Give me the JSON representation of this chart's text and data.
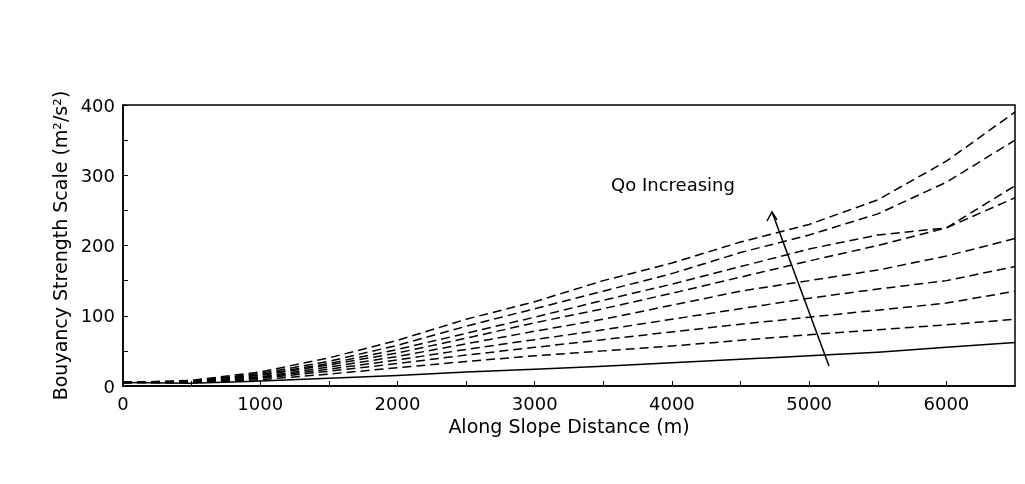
{
  "chart_data": {
    "type": "line",
    "xlabel": "Along Slope Distance (m)",
    "ylabel": "Bouyancy Strength Scale (m²/s²)",
    "x": [
      0,
      500,
      1000,
      1500,
      2000,
      2500,
      3000,
      3500,
      4000,
      4500,
      5000,
      5500,
      6000,
      6500
    ],
    "series": [
      {
        "color": "#000000",
        "line_style": "solid",
        "values": [
          5,
          4,
          7,
          11,
          15,
          20,
          24,
          28,
          33,
          38,
          43,
          48,
          55,
          62
        ]
      },
      {
        "color": "#000000",
        "line_style": "dashed",
        "values": [
          5,
          5,
          9,
          17,
          26,
          35,
          43,
          50,
          57,
          65,
          73,
          80,
          87,
          95
        ]
      },
      {
        "color": "#000000",
        "line_style": "dashed",
        "values": [
          5,
          5,
          11,
          21,
          32,
          44,
          55,
          66,
          77,
          88,
          98,
          108,
          118,
          135
        ]
      },
      {
        "color": "#000000",
        "line_style": "dashed",
        "values": [
          5,
          5,
          12,
          24,
          37,
          52,
          66,
          80,
          95,
          110,
          125,
          138,
          150,
          170
        ]
      },
      {
        "color": "#000000",
        "line_style": "dashed",
        "values": [
          5,
          6,
          13,
          27,
          42,
          60,
          78,
          95,
          115,
          135,
          150,
          165,
          185,
          210
        ]
      },
      {
        "color": "#000000",
        "line_style": "dashed",
        "values": [
          5,
          6,
          15,
          30,
          47,
          68,
          90,
          110,
          132,
          155,
          178,
          200,
          225,
          268
        ]
      },
      {
        "color": "#000000",
        "line_style": "dashed",
        "values": [
          5,
          7,
          16,
          32,
          52,
          75,
          98,
          122,
          145,
          170,
          195,
          215,
          225,
          285
        ]
      },
      {
        "color": "#000000",
        "line_style": "dashed",
        "values": [
          5,
          7,
          18,
          35,
          58,
          85,
          110,
          135,
          160,
          190,
          215,
          245,
          290,
          350
        ]
      },
      {
        "color": "#000000",
        "line_style": "dashed",
        "values": [
          5,
          8,
          20,
          40,
          65,
          95,
          120,
          150,
          175,
          205,
          230,
          265,
          320,
          390
        ]
      }
    ],
    "xlim": [
      0,
      6500
    ],
    "xticks": [
      0,
      {
        "value": 500,
        "label": null
      },
      1000,
      {
        "value": 1500,
        "label": null
      },
      2000,
      {
        "value": 2500,
        "label": null
      },
      3000,
      {
        "value": 3500,
        "label": null
      },
      4000,
      {
        "value": 4500,
        "label": null
      },
      5000,
      {
        "value": 5500,
        "label": null
      },
      6000
    ],
    "ylim": [
      0,
      400
    ],
    "yticks": [
      0,
      {
        "value": 50,
        "label": null
      },
      100,
      {
        "value": 150,
        "label": null
      },
      200,
      {
        "value": 250,
        "label": null
      },
      300,
      {
        "value": 350,
        "label": null
      },
      400
    ],
    "grid": false,
    "marker": "none",
    "annotations": [
      "Qo Increasing"
    ]
  }
}
